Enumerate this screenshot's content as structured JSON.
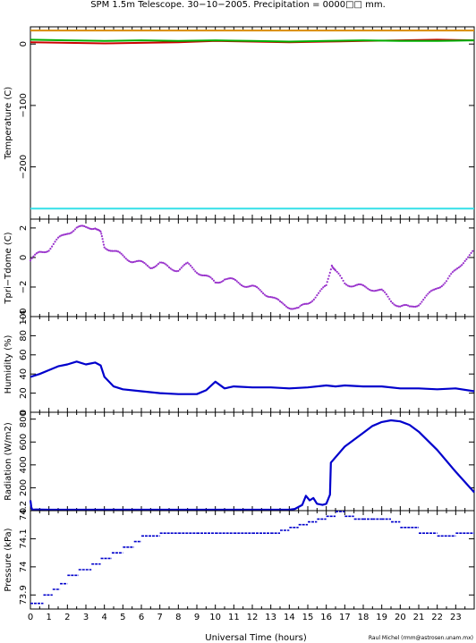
{
  "title": "SPM 1.5m Telescope. 30−10−2005. Precipitation = 0000□□ mm.",
  "credit": "Raul Michel (rmm@astrosen.unam.mx)",
  "colors": {
    "orange": "#d98c00",
    "red": "#cc0000",
    "green": "#00b000",
    "cyan": "#33e0e8",
    "blue": "#0000cc",
    "purple": "#9933cc"
  },
  "chart_data": {
    "type": "line",
    "title": "SPM 1.5m Telescope. 30−10−2005. Precipitation = 0000□□ mm.",
    "xlabel": "Universal Time (hours)",
    "xlim": [
      0,
      24
    ],
    "xticks": [
      0,
      1,
      2,
      3,
      4,
      5,
      6,
      7,
      8,
      9,
      10,
      11,
      12,
      13,
      14,
      15,
      16,
      17,
      18,
      19,
      20,
      21,
      22,
      23
    ],
    "panels": [
      {
        "ylabel": "Temperature (C)",
        "ylim": [
          -285,
          28
        ],
        "yticks": [
          0,
          -100,
          -200
        ],
        "ytick_labels": [
          "0",
          "−100",
          "−200"
        ],
        "series": [
          {
            "color": "#d98c00",
            "x": [
              0,
              24
            ],
            "y": [
              22,
              22
            ]
          },
          {
            "color": "#cc0000",
            "x": [
              0,
              2,
              4,
              6,
              8,
              10,
              12,
              14,
              16,
              18,
              20,
              22,
              24
            ],
            "y": [
              3,
              2,
              1,
              2,
              3,
              5,
              4,
              3,
              4,
              5,
              6,
              7,
              6
            ]
          },
          {
            "color": "#00b000",
            "x": [
              0,
              2,
              4,
              6,
              8,
              10,
              12,
              14,
              16,
              18,
              20,
              22,
              24
            ],
            "y": [
              7,
              6,
              5,
              6,
              5,
              6,
              5,
              4,
              5,
              6,
              5,
              5,
              6
            ]
          },
          {
            "color": "#33e0e8",
            "x": [
              0,
              24
            ],
            "y": [
              -268,
              -268
            ]
          }
        ]
      },
      {
        "ylabel": "Tpri−Tdome (C)",
        "ylim": [
          -4,
          2.6
        ],
        "yticks": [
          2,
          0,
          -2,
          -4
        ],
        "ytick_labels": [
          "2",
          "0",
          "−2",
          "−4"
        ],
        "style": "points",
        "series": [
          {
            "color": "#9933cc",
            "x": [
              0,
              0.5,
              1,
              1.5,
              2,
              2.5,
              3,
              3.5,
              3.8,
              4,
              4.5,
              5,
              5.5,
              6,
              6.5,
              7,
              7.5,
              8,
              8.5,
              9,
              9.5,
              10,
              10.5,
              11,
              11.5,
              12,
              12.5,
              13,
              13.5,
              14,
              14.5,
              15,
              15.5,
              16,
              16.3,
              16.5,
              17,
              17.5,
              18,
              18.5,
              19,
              19.5,
              20,
              20.5,
              21,
              21.5,
              22,
              22.5,
              23,
              23.5,
              24
            ],
            "y": [
              -0.2,
              0.3,
              0.6,
              1.2,
              1.7,
              2.0,
              2.0,
              2.1,
              1.6,
              0.8,
              0.4,
              0.1,
              -0.2,
              -0.4,
              -0.6,
              -0.4,
              -0.7,
              -0.8,
              -0.5,
              -0.9,
              -1.3,
              -1.7,
              -1.4,
              -1.6,
              -1.8,
              -2.0,
              -2.3,
              -2.6,
              -3.1,
              -3.3,
              -3.5,
              -3.1,
              -2.5,
              -2.0,
              -0.4,
              -1.0,
              -1.7,
              -1.9,
              -2.0,
              -2.1,
              -2.3,
              -2.9,
              -3.3,
              -3.4,
              -3.1,
              -2.6,
              -2.0,
              -1.6,
              -0.9,
              -0.1,
              0.4
            ]
          }
        ]
      },
      {
        "ylabel": "Humidity (%)",
        "ylim": [
          0,
          100
        ],
        "yticks": [
          0,
          20,
          40,
          60,
          80,
          100
        ],
        "ytick_labels": [
          "0",
          "20",
          "40",
          "60",
          "80",
          "100"
        ],
        "series": [
          {
            "color": "#0000cc",
            "x": [
              0,
              0.5,
              1,
              1.5,
              2,
              2.5,
              3,
              3.5,
              3.8,
              4,
              4.5,
              5,
              6,
              7,
              8,
              9,
              9.5,
              10,
              10.5,
              11,
              12,
              13,
              14,
              15,
              16,
              16.5,
              17,
              18,
              19,
              20,
              21,
              22,
              23,
              24
            ],
            "y": [
              37,
              40,
              44,
              48,
              50,
              53,
              50,
              52,
              49,
              37,
              27,
              24,
              22,
              20,
              19,
              19,
              23,
              32,
              25,
              27,
              26,
              26,
              25,
              26,
              28,
              27,
              28,
              27,
              27,
              25,
              25,
              24,
              25,
              22
            ]
          }
        ]
      },
      {
        "ylabel": "Radiation (W/m2)",
        "ylim": [
          0,
          860
        ],
        "yticks": [
          0,
          200,
          400,
          600,
          800
        ],
        "ytick_labels": [
          "0",
          "200",
          "400",
          "600",
          "800"
        ],
        "series": [
          {
            "color": "#0000cc",
            "x": [
              0,
              0.05,
              0.1,
              0.3,
              1,
              4,
              8,
              12,
              14,
              14.3,
              14.7,
              14.9,
              15.1,
              15.3,
              15.5,
              15.8,
              16,
              16.2,
              16.25,
              17,
              18,
              18.5,
              19,
              19.5,
              20,
              20.5,
              21,
              22,
              23,
              24
            ],
            "y": [
              90,
              30,
              8,
              10,
              8,
              8,
              8,
              8,
              8,
              15,
              50,
              130,
              90,
              110,
              60,
              50,
              60,
              140,
              420,
              560,
              680,
              740,
              775,
              790,
              780,
              750,
              690,
              530,
              340,
              160
            ]
          }
        ]
      },
      {
        "ylabel": "Pressure (kPa)",
        "ylim": [
          73.85,
          74.2
        ],
        "yticks": [
          73.9,
          74.0,
          74.1,
          74.2
        ],
        "ytick_labels": [
          "73.9",
          "74",
          "74.1",
          "74.2"
        ],
        "style": "steps",
        "series": [
          {
            "color": "#0000cc",
            "x": [
              0,
              0.7,
              1.2,
              1.6,
              2,
              2.6,
              3.3,
              3.8,
              4.4,
              5,
              5.6,
              6,
              7,
              8,
              9,
              10,
              11,
              12,
              13,
              13.5,
              14,
              14.5,
              15,
              15.5,
              16,
              16.5,
              17,
              17.5,
              18,
              18.5,
              19,
              19.5,
              20,
              21,
              22,
              23,
              24
            ],
            "y": [
              73.87,
              73.9,
              73.92,
              73.94,
              73.97,
              73.99,
              74.01,
              74.03,
              74.05,
              74.07,
              74.09,
              74.11,
              74.12,
              74.12,
              74.12,
              74.12,
              74.12,
              74.12,
              74.12,
              74.13,
              74.14,
              74.15,
              74.16,
              74.17,
              74.18,
              74.2,
              74.18,
              74.17,
              74.17,
              74.17,
              74.17,
              74.16,
              74.14,
              74.12,
              74.11,
              74.12,
              74.13
            ]
          }
        ]
      }
    ]
  }
}
